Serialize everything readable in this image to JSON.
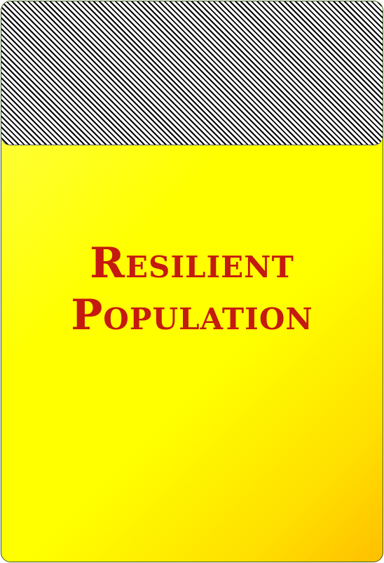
{
  "card": {
    "title_lines": [
      "Resilient",
      "Population"
    ],
    "colors": {
      "title": "#c41a10",
      "background": "#ffff00",
      "background_light": "#ffffb0",
      "background_dark": "#ffbf00",
      "hatch": "#000000",
      "border": "#3b5a1a"
    }
  }
}
